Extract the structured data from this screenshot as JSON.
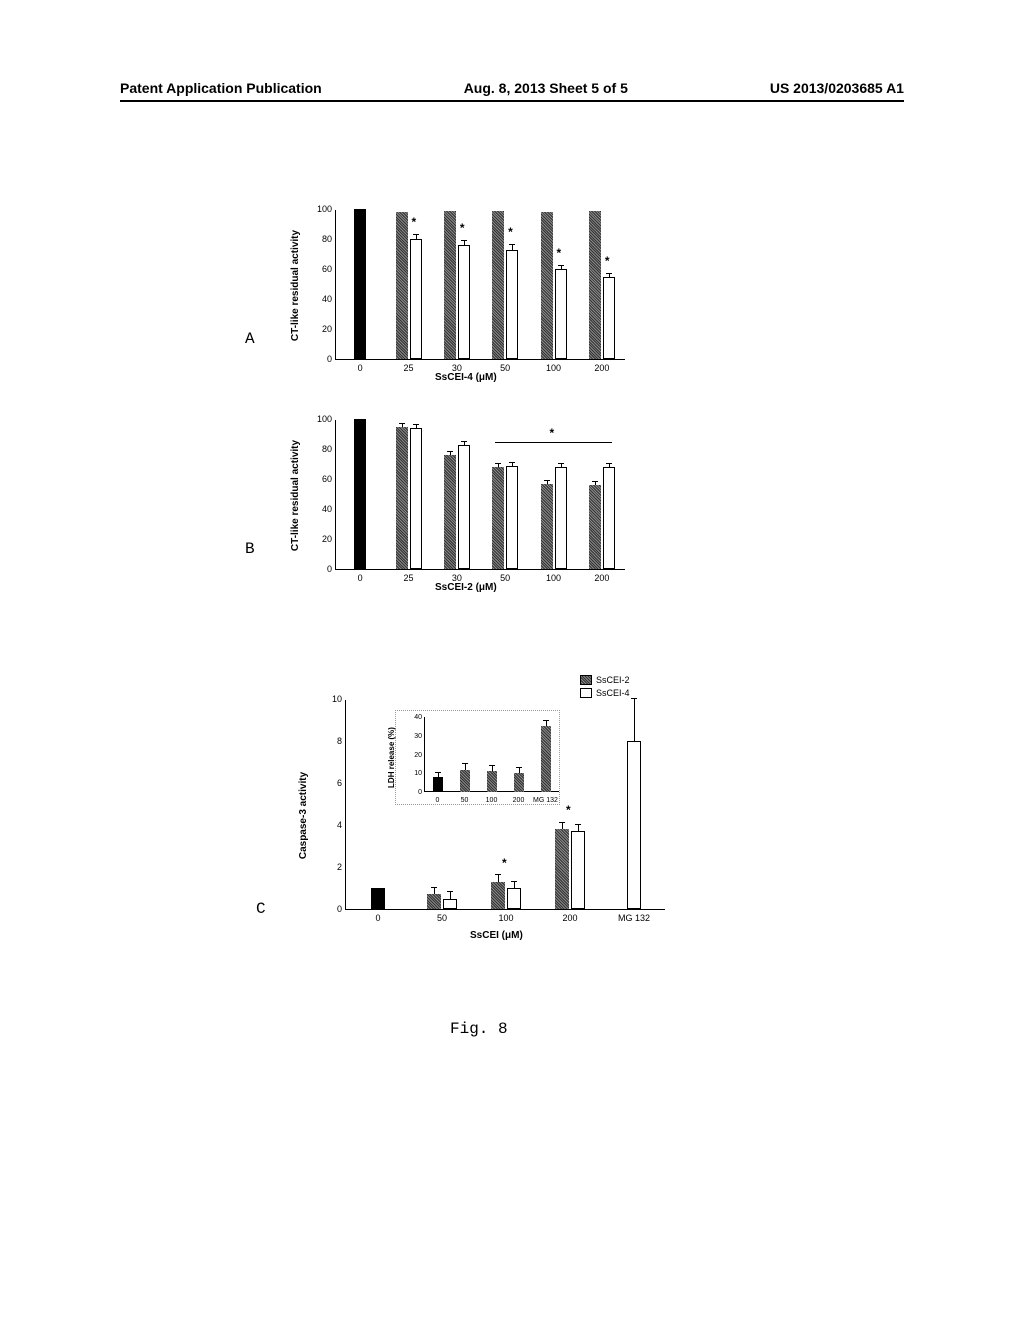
{
  "header": {
    "left": "Patent Application Publication",
    "center": "Aug. 8, 2013  Sheet 5 of 5",
    "right": "US 2013/0203685 A1"
  },
  "panelA": {
    "label": "A",
    "ylabel": "CT-like residual activity",
    "xlabel": "SsCEI-4 (μM)",
    "categories": [
      "0",
      "25",
      "30",
      "50",
      "100",
      "200"
    ],
    "black_bar": 100,
    "hatched_values": [
      null,
      98,
      99,
      99,
      98,
      99
    ],
    "white_values": [
      null,
      80,
      76,
      73,
      60,
      55
    ],
    "white_errors": [
      null,
      3,
      3,
      3,
      2,
      2
    ],
    "ylim": [
      0,
      100
    ],
    "ytick_step": 20,
    "stars_white": [
      false,
      true,
      true,
      true,
      true,
      true
    ]
  },
  "panelB": {
    "label": "B",
    "ylabel": "CT-like residual activity",
    "xlabel": "SsCEI-2 (μM)",
    "categories": [
      "0",
      "25",
      "30",
      "50",
      "100",
      "200"
    ],
    "black_bar": 100,
    "hatched_values": [
      null,
      95,
      76,
      68,
      57,
      56
    ],
    "white_values": [
      null,
      94,
      83,
      69,
      68,
      68
    ],
    "hatched_errors": [
      null,
      2,
      2,
      2,
      2,
      2
    ],
    "white_errors": [
      null,
      2,
      2,
      2,
      2,
      2
    ],
    "ylim": [
      0,
      100
    ],
    "ytick_step": 20,
    "sig_line_start": 3,
    "sig_line_end": 5,
    "sig_star": true
  },
  "panelC": {
    "label": "C",
    "ylabel": "Caspase-3 activity",
    "xlabel": "SsCEI (μM)",
    "categories": [
      "0",
      "50",
      "100",
      "200",
      "MG 132"
    ],
    "black_bar": 1.0,
    "hatched_values": [
      null,
      0.7,
      1.3,
      3.8,
      null
    ],
    "white_values": [
      null,
      0.5,
      1.0,
      3.7,
      8.0
    ],
    "hatched_errors": [
      null,
      0.3,
      0.3,
      0.3,
      null
    ],
    "white_errors": [
      null,
      0.3,
      0.3,
      0.3,
      2.0
    ],
    "ylim": [
      0,
      10
    ],
    "ytick_step": 2,
    "stars": [
      false,
      false,
      true,
      true,
      false
    ],
    "legend": {
      "items": [
        {
          "label": "SsCEI-2",
          "type": "hatched"
        },
        {
          "label": "SsCEI-4",
          "type": "white"
        }
      ]
    },
    "inset": {
      "ylabel": "LDH release (%)",
      "categories": [
        "0",
        "50",
        "100",
        "200",
        "MG 132"
      ],
      "values": [
        8,
        12,
        11,
        10,
        35
      ],
      "errors": [
        2,
        3,
        3,
        3,
        3
      ],
      "ylim": [
        0,
        40
      ],
      "ytick_step": 10
    }
  },
  "figure_caption": "Fig. 8"
}
